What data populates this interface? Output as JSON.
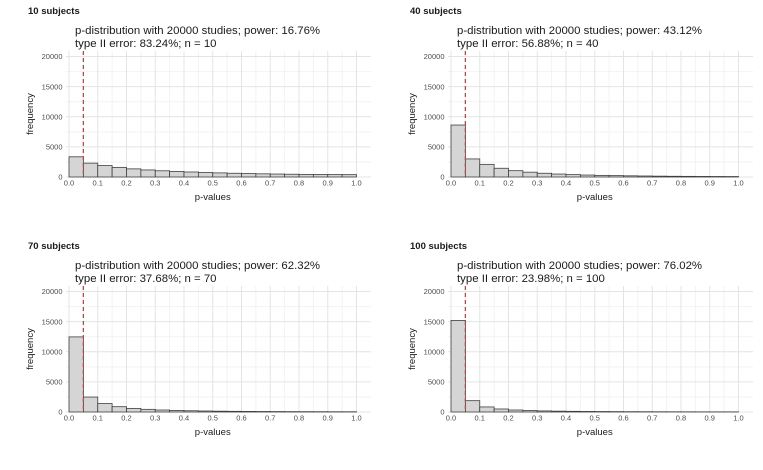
{
  "colors": {
    "background": "#ffffff",
    "bar_fill": "#d5d5d5",
    "bar_border": "#3f3f3f",
    "vline_red": "#fb2e24",
    "grid_major": "#e4e4e4",
    "grid_minor": "#f2f2f2",
    "text_dark": "#1a1a1a",
    "text_tick": "#4d4d4d"
  },
  "chart_data": [
    {
      "type": "bar",
      "panel_label": "10 subjects",
      "title_line1": "p-distribution with 20000 studies; power: 16.76%",
      "title_line2": "type II error: 83.24%; n = 10",
      "n_subjects": 10,
      "n_studies": 20000,
      "power_pct": 16.76,
      "type_II_error_pct": 83.24,
      "xlabel": "p-values",
      "ylabel": "frequency",
      "xlim": [
        0.0,
        1.0
      ],
      "ylim": [
        0,
        20000
      ],
      "grid": true,
      "legend": "none",
      "vline_x": 0.05,
      "vline_style": "dashed",
      "bin_width": 0.05,
      "x_ticks": [
        0,
        0.1,
        0.2,
        0.3,
        0.4,
        0.5,
        0.6,
        0.7,
        0.8,
        0.9,
        1.0
      ],
      "x_tick_labels": [
        "0.0",
        "0.1",
        "0.2",
        "0.3",
        "0.4",
        "0.5",
        "0.6",
        "0.7",
        "0.8",
        "0.9",
        "1.0"
      ],
      "y_ticks": [
        0,
        5000,
        10000,
        15000,
        20000
      ],
      "y_tick_labels": [
        "0",
        "5000",
        "10000",
        "15000",
        "20000"
      ],
      "values": [
        3352,
        2300,
        1900,
        1600,
        1350,
        1170,
        1030,
        920,
        830,
        750,
        680,
        620,
        570,
        525,
        490,
        460,
        435,
        415,
        400,
        390
      ]
    },
    {
      "type": "bar",
      "panel_label": "40 subjects",
      "title_line1": "p-distribution with 20000 studies; power: 43.12%",
      "title_line2": "type II error: 56.88%; n = 40",
      "n_subjects": 40,
      "n_studies": 20000,
      "power_pct": 43.12,
      "type_II_error_pct": 56.88,
      "xlabel": "p-values",
      "ylabel": "frequency",
      "xlim": [
        0.0,
        1.0
      ],
      "ylim": [
        0,
        20000
      ],
      "grid": true,
      "legend": "none",
      "vline_x": 0.05,
      "vline_style": "dashed",
      "bin_width": 0.05,
      "x_ticks": [
        0,
        0.1,
        0.2,
        0.3,
        0.4,
        0.5,
        0.6,
        0.7,
        0.8,
        0.9,
        1.0
      ],
      "x_tick_labels": [
        "0.0",
        "0.1",
        "0.2",
        "0.3",
        "0.4",
        "0.5",
        "0.6",
        "0.7",
        "0.8",
        "0.9",
        "1.0"
      ],
      "y_ticks": [
        0,
        5000,
        10000,
        15000,
        20000
      ],
      "y_tick_labels": [
        "0",
        "5000",
        "10000",
        "15000",
        "20000"
      ],
      "values": [
        8624,
        3000,
        2100,
        1450,
        1050,
        800,
        620,
        490,
        395,
        325,
        270,
        230,
        195,
        165,
        140,
        120,
        105,
        92,
        82,
        75
      ]
    },
    {
      "type": "bar",
      "panel_label": "70 subjects",
      "title_line1": "p-distribution with 20000 studies; power: 62.32%",
      "title_line2": "type II error: 37.68%; n = 70",
      "n_subjects": 70,
      "n_studies": 20000,
      "power_pct": 62.32,
      "type_II_error_pct": 37.68,
      "xlabel": "p-values",
      "ylabel": "frequency",
      "xlim": [
        0.0,
        1.0
      ],
      "ylim": [
        0,
        20000
      ],
      "grid": true,
      "legend": "none",
      "vline_x": 0.05,
      "vline_style": "dashed",
      "bin_width": 0.05,
      "x_ticks": [
        0,
        0.1,
        0.2,
        0.3,
        0.4,
        0.5,
        0.6,
        0.7,
        0.8,
        0.9,
        1.0
      ],
      "x_tick_labels": [
        "0.0",
        "0.1",
        "0.2",
        "0.3",
        "0.4",
        "0.5",
        "0.6",
        "0.7",
        "0.8",
        "0.9",
        "1.0"
      ],
      "y_ticks": [
        0,
        5000,
        10000,
        15000,
        20000
      ],
      "y_tick_labels": [
        "0",
        "5000",
        "10000",
        "15000",
        "20000"
      ],
      "values": [
        12464,
        2480,
        1400,
        880,
        600,
        440,
        330,
        260,
        205,
        165,
        135,
        112,
        95,
        80,
        70,
        60,
        53,
        47,
        42,
        38
      ]
    },
    {
      "type": "bar",
      "panel_label": "100 subjects",
      "title_line1": "p-distribution with 20000 studies; power: 76.02%",
      "title_line2": "type II error: 23.98%; n = 100",
      "n_subjects": 100,
      "n_studies": 20000,
      "power_pct": 76.02,
      "type_II_error_pct": 23.98,
      "xlabel": "p-values",
      "ylabel": "frequency",
      "xlim": [
        0.0,
        1.0
      ],
      "ylim": [
        0,
        20000
      ],
      "grid": true,
      "legend": "none",
      "vline_x": 0.05,
      "vline_style": "dashed",
      "bin_width": 0.05,
      "x_ticks": [
        0,
        0.1,
        0.2,
        0.3,
        0.4,
        0.5,
        0.6,
        0.7,
        0.8,
        0.9,
        1.0
      ],
      "x_tick_labels": [
        "0.0",
        "0.1",
        "0.2",
        "0.3",
        "0.4",
        "0.5",
        "0.6",
        "0.7",
        "0.8",
        "0.9",
        "1.0"
      ],
      "y_ticks": [
        0,
        5000,
        10000,
        15000,
        20000
      ],
      "y_tick_labels": [
        "0",
        "5000",
        "10000",
        "15000",
        "20000"
      ],
      "values": [
        15204,
        1880,
        840,
        500,
        330,
        240,
        180,
        140,
        110,
        90,
        75,
        62,
        52,
        45,
        38,
        33,
        29,
        25,
        22,
        20
      ]
    }
  ]
}
